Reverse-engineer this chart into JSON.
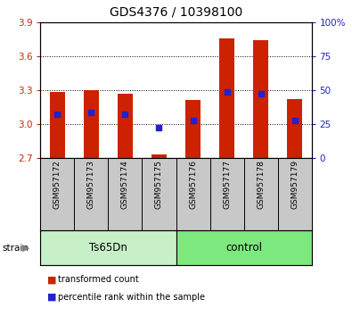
{
  "title": "GDS4376 / 10398100",
  "samples": [
    "GSM957172",
    "GSM957173",
    "GSM957174",
    "GSM957175",
    "GSM957176",
    "GSM957177",
    "GSM957178",
    "GSM957179"
  ],
  "red_values": [
    3.28,
    3.3,
    3.27,
    2.73,
    3.21,
    3.76,
    3.74,
    3.22
  ],
  "blue_values": [
    3.09,
    3.1,
    3.09,
    2.97,
    3.03,
    3.28,
    3.27,
    3.03
  ],
  "baseline": 2.7,
  "ylim_left": [
    2.7,
    3.9
  ],
  "yticks_left": [
    2.7,
    3.0,
    3.3,
    3.6,
    3.9
  ],
  "ylim_right": [
    0,
    100
  ],
  "yticks_right": [
    0,
    25,
    50,
    75,
    100
  ],
  "yticklabels_right": [
    "0",
    "25",
    "50",
    "75",
    "100%"
  ],
  "strain_groups": [
    {
      "label": "Ts65Dn",
      "indices": [
        0,
        1,
        2,
        3
      ],
      "color": "#c8f0c8"
    },
    {
      "label": "control",
      "indices": [
        4,
        5,
        6,
        7
      ],
      "color": "#7de87d"
    }
  ],
  "strain_label": "strain",
  "bar_color": "#cc2200",
  "dot_color": "#2222cc",
  "bar_width": 0.45,
  "dot_size": 18,
  "tick_label_color_left": "#cc2200",
  "tick_label_color_right": "#2222cc",
  "legend_items": [
    {
      "label": "transformed count",
      "color": "#cc2200"
    },
    {
      "label": "percentile rank within the sample",
      "color": "#2222cc"
    }
  ],
  "background_color": "#ffffff",
  "xtick_bg_color": "#c8c8c8"
}
